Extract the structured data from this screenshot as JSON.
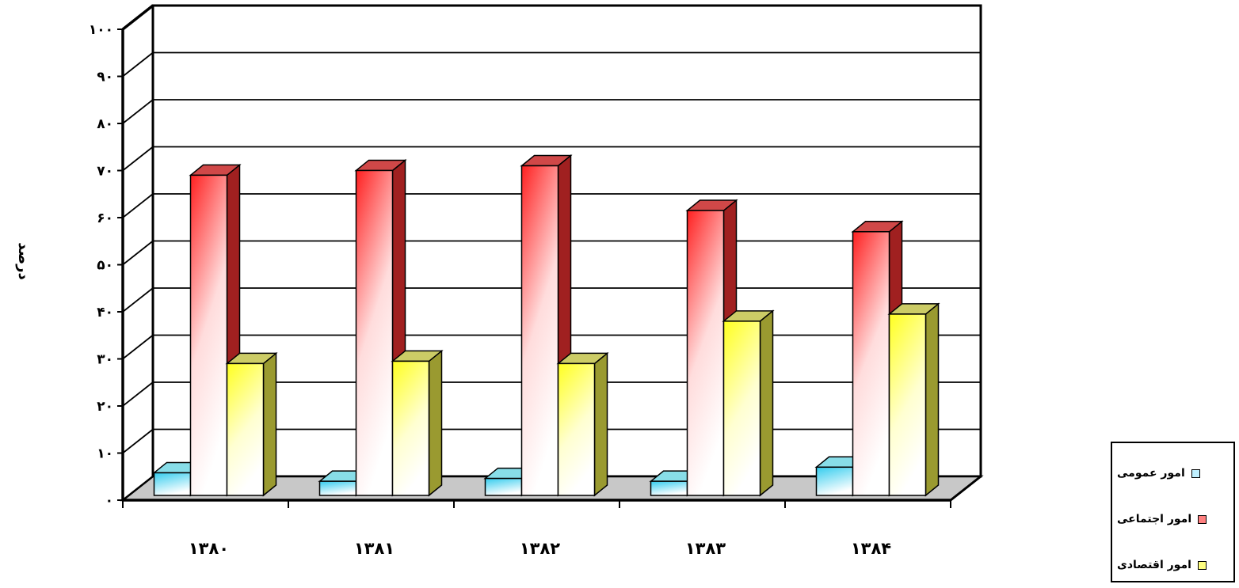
{
  "chart_data": {
    "type": "bar",
    "ylabel": "درصد",
    "ylim": [
      0,
      100
    ],
    "yticks": [
      "۰",
      "۱۰",
      "۲۰",
      "۳۰",
      "۴۰",
      "۵۰",
      "۶۰",
      "۷۰",
      "۸۰",
      "۹۰",
      "۱۰۰"
    ],
    "categories": [
      "۱۳۸۰",
      "۱۳۸۱",
      "۱۳۸۲",
      "۱۳۸۳",
      "۱۳۸۴"
    ],
    "grid": true,
    "legend_position": "bottom-right",
    "series": [
      {
        "name": "امور عمومی",
        "color": "#33ccee",
        "values": [
          4.8,
          3.0,
          3.6,
          3.0,
          6.0
        ]
      },
      {
        "name": "امور اجتماعی",
        "color": "#ff2020",
        "values": [
          68,
          69,
          70,
          60.5,
          56
        ]
      },
      {
        "name": "امور اقتصادی",
        "color": "#ffff20",
        "values": [
          28,
          28.5,
          28,
          37,
          38.5
        ]
      }
    ]
  }
}
